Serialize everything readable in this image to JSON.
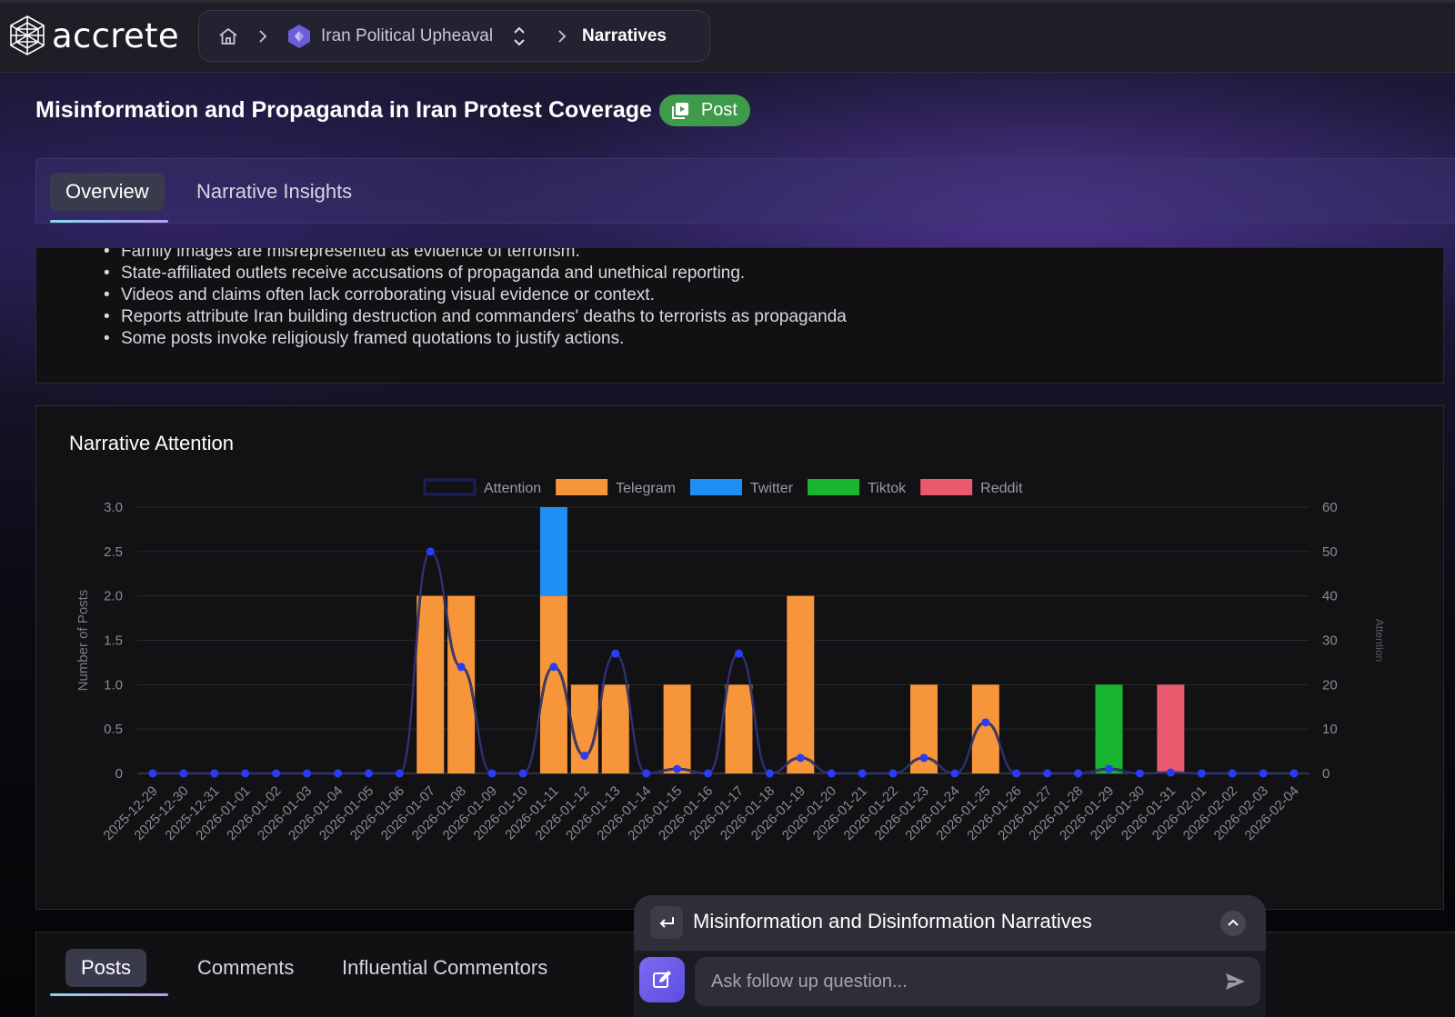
{
  "app": {
    "brand": "accrete"
  },
  "breadcrumb": {
    "project": "Iran Political Upheaval",
    "current": "Narratives"
  },
  "page": {
    "title": "Misinformation and Propaganda in Iran Protest Coverage",
    "badge": "Post"
  },
  "tabs": [
    {
      "label": "Overview",
      "active": true
    },
    {
      "label": "Narrative Insights",
      "active": false
    }
  ],
  "summary": {
    "bullets": [
      "Family images are misrepresented as evidence of terrorism.",
      "State-affiliated outlets receive accusations of propaganda and unethical reporting.",
      "Videos and claims often lack corroborating visual evidence or context.",
      "Reports attribute Iran building destruction and commanders' deaths to terrorists as propaganda",
      "Some posts invoke religiously framed quotations to justify actions."
    ]
  },
  "chart_data": {
    "type": "bar",
    "title": "Narrative Attention",
    "ylabel": "Number of Posts",
    "y2label": "Attention",
    "ylim": [
      0,
      3
    ],
    "y2lim": [
      0,
      60
    ],
    "yticks": [
      "0",
      "0.5",
      "1.0",
      "1.5",
      "2.0",
      "2.5",
      "3.0"
    ],
    "y2ticks": [
      "0",
      "10",
      "20",
      "30",
      "40",
      "50",
      "60"
    ],
    "stacked": true,
    "categories": [
      "2025-12-29",
      "2025-12-30",
      "2025-12-31",
      "2026-01-01",
      "2026-01-02",
      "2026-01-03",
      "2026-01-04",
      "2026-01-05",
      "2026-01-06",
      "2026-01-07",
      "2026-01-08",
      "2026-01-09",
      "2026-01-10",
      "2026-01-11",
      "2026-01-12",
      "2026-01-13",
      "2026-01-14",
      "2026-01-15",
      "2026-01-16",
      "2026-01-17",
      "2026-01-18",
      "2026-01-19",
      "2026-01-20",
      "2026-01-21",
      "2026-01-22",
      "2026-01-23",
      "2026-01-24",
      "2026-01-25",
      "2026-01-26",
      "2026-01-27",
      "2026-01-28",
      "2026-01-29",
      "2026-01-30",
      "2026-01-31",
      "2026-02-01",
      "2026-02-02",
      "2026-02-03",
      "2026-02-04"
    ],
    "series": [
      {
        "name": "Telegram",
        "color": "#f7953b",
        "values": [
          0,
          0,
          0,
          0,
          0,
          0,
          0,
          0,
          0,
          2,
          2,
          0,
          0,
          2,
          1,
          1,
          0,
          1,
          0,
          1,
          0,
          2,
          0,
          0,
          0,
          1,
          0,
          1,
          0,
          0,
          0,
          0,
          0,
          0,
          0,
          0,
          0,
          0
        ]
      },
      {
        "name": "Twitter",
        "color": "#1f8ef5",
        "values": [
          0,
          0,
          0,
          0,
          0,
          0,
          0,
          0,
          0,
          0,
          0,
          0,
          0,
          1,
          0,
          0,
          0,
          0,
          0,
          0,
          0,
          0,
          0,
          0,
          0,
          0,
          0,
          0,
          0,
          0,
          0,
          0,
          0,
          0,
          0,
          0,
          0,
          0
        ]
      },
      {
        "name": "Tiktok",
        "color": "#19b530",
        "values": [
          0,
          0,
          0,
          0,
          0,
          0,
          0,
          0,
          0,
          0,
          0,
          0,
          0,
          0,
          0,
          0,
          0,
          0,
          0,
          0,
          0,
          0,
          0,
          0,
          0,
          0,
          0,
          0,
          0,
          0,
          0,
          1,
          0,
          0,
          0,
          0,
          0,
          0
        ]
      },
      {
        "name": "Reddit",
        "color": "#ea5a6e",
        "values": [
          0,
          0,
          0,
          0,
          0,
          0,
          0,
          0,
          0,
          0,
          0,
          0,
          0,
          0,
          0,
          0,
          0,
          0,
          0,
          0,
          0,
          0,
          0,
          0,
          0,
          0,
          0,
          0,
          0,
          0,
          0,
          0,
          0,
          1,
          0,
          0,
          0,
          0
        ]
      }
    ],
    "line": {
      "name": "Attention",
      "color": "#1c1f5c",
      "point_color": "#2a3cf5",
      "axis": "right",
      "values": [
        0,
        0,
        0,
        0,
        0,
        0,
        0,
        0,
        0,
        50,
        24,
        0,
        0,
        24,
        4,
        27,
        0,
        1,
        0,
        27,
        0,
        3.5,
        0,
        0,
        0,
        3.5,
        0,
        11.5,
        0,
        0,
        0,
        1,
        0,
        0.2,
        0,
        0,
        0,
        0
      ]
    },
    "legend": "top-center"
  },
  "bottom_tabs": [
    {
      "label": "Posts",
      "active": true
    },
    {
      "label": "Comments",
      "active": false
    },
    {
      "label": "Influential Commentors",
      "active": false
    }
  ],
  "chat": {
    "title": "Misinformation and Disinformation Narratives",
    "placeholder": "Ask follow up question..."
  }
}
